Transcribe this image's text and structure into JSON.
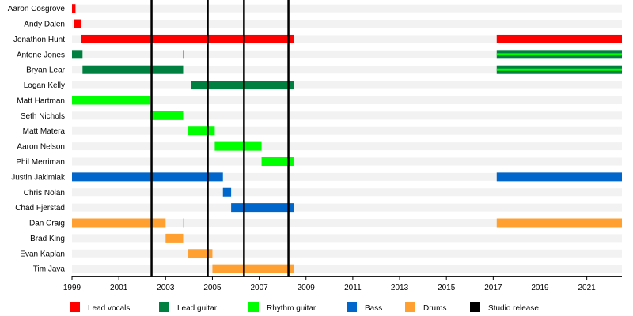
{
  "chart_data": {
    "type": "timeline",
    "title": "",
    "x_range": [
      1999,
      2022.5
    ],
    "x_ticks": [
      "1999",
      "2001",
      "2003",
      "2005",
      "2007",
      "2009",
      "2011",
      "2013",
      "2015",
      "2017",
      "2019",
      "2021"
    ],
    "grid": "alternating row stripes",
    "legend_position": "bottom",
    "roles": [
      {
        "key": "lead_vocals",
        "label": "Lead vocals",
        "color": "#ff0000"
      },
      {
        "key": "lead_guitar",
        "label": "Lead guitar",
        "color": "#008040"
      },
      {
        "key": "rhythm_guitar",
        "label": "Rhythm guitar",
        "color": "#00ff00"
      },
      {
        "key": "bass",
        "label": "Bass",
        "color": "#0066cc"
      },
      {
        "key": "drums",
        "label": "Drums",
        "color": "#ffa030"
      },
      {
        "key": "studio",
        "label": "Studio release",
        "color": "#000000"
      }
    ],
    "studio_releases": [
      2002.4,
      2004.8,
      2006.35,
      2008.25
    ],
    "members": [
      {
        "name": "Aaron Cosgrove",
        "spans": [
          {
            "role": "lead_vocals",
            "start": 1999.0,
            "end": 1999.15
          }
        ]
      },
      {
        "name": "Andy Dalen",
        "spans": [
          {
            "role": "lead_vocals",
            "start": 1999.1,
            "end": 1999.4
          }
        ]
      },
      {
        "name": "Jonathon Hunt",
        "spans": [
          {
            "role": "lead_vocals",
            "start": 1999.4,
            "end": 2008.5
          },
          {
            "role": "lead_vocals",
            "start": 2017.15,
            "end": 2022.5
          }
        ]
      },
      {
        "name": "Antone Jones",
        "spans": [
          {
            "role": "lead_guitar",
            "start": 1999.0,
            "end": 1999.45
          },
          {
            "role": "lead_guitar",
            "start": 2003.75,
            "end": 2003.8
          },
          {
            "role": "lead_guitar",
            "start": 2017.15,
            "end": 2022.5,
            "secondary": "rhythm_guitar"
          }
        ]
      },
      {
        "name": "Bryan Lear",
        "spans": [
          {
            "role": "lead_guitar",
            "start": 1999.45,
            "end": 2003.75
          },
          {
            "role": "lead_guitar",
            "start": 2017.15,
            "end": 2022.5,
            "secondary": "rhythm_guitar"
          }
        ]
      },
      {
        "name": "Logan Kelly",
        "spans": [
          {
            "role": "lead_guitar",
            "start": 2004.1,
            "end": 2008.5
          }
        ]
      },
      {
        "name": "Matt Hartman",
        "spans": [
          {
            "role": "rhythm_guitar",
            "start": 1999.0,
            "end": 2002.35
          }
        ]
      },
      {
        "name": "Seth Nichols",
        "spans": [
          {
            "role": "rhythm_guitar",
            "start": 2002.35,
            "end": 2003.75
          }
        ]
      },
      {
        "name": "Matt Matera",
        "spans": [
          {
            "role": "rhythm_guitar",
            "start": 2003.95,
            "end": 2005.1
          }
        ]
      },
      {
        "name": "Aaron Nelson",
        "spans": [
          {
            "role": "rhythm_guitar",
            "start": 2005.1,
            "end": 2007.1
          }
        ]
      },
      {
        "name": "Phil Merriman",
        "spans": [
          {
            "role": "rhythm_guitar",
            "start": 2007.1,
            "end": 2008.5
          }
        ]
      },
      {
        "name": "Justin Jakimiak",
        "spans": [
          {
            "role": "bass",
            "start": 1999.0,
            "end": 2005.45
          },
          {
            "role": "bass",
            "start": 2017.15,
            "end": 2022.5
          }
        ]
      },
      {
        "name": "Chris Nolan",
        "spans": [
          {
            "role": "bass",
            "start": 2005.45,
            "end": 2005.8
          }
        ]
      },
      {
        "name": "Chad Fjerstad",
        "spans": [
          {
            "role": "bass",
            "start": 2005.8,
            "end": 2008.5
          }
        ]
      },
      {
        "name": "Dan Craig",
        "spans": [
          {
            "role": "drums",
            "start": 1999.0,
            "end": 2003.0
          },
          {
            "role": "drums",
            "start": 2003.75,
            "end": 2003.8
          },
          {
            "role": "drums",
            "start": 2017.15,
            "end": 2022.5
          }
        ]
      },
      {
        "name": "Brad King",
        "spans": [
          {
            "role": "drums",
            "start": 2003.0,
            "end": 2003.75
          }
        ]
      },
      {
        "name": "Evan Kaplan",
        "spans": [
          {
            "role": "drums",
            "start": 2003.95,
            "end": 2005.0
          }
        ]
      },
      {
        "name": "Tim Java",
        "spans": [
          {
            "role": "drums",
            "start": 2005.0,
            "end": 2008.5
          }
        ]
      }
    ]
  }
}
